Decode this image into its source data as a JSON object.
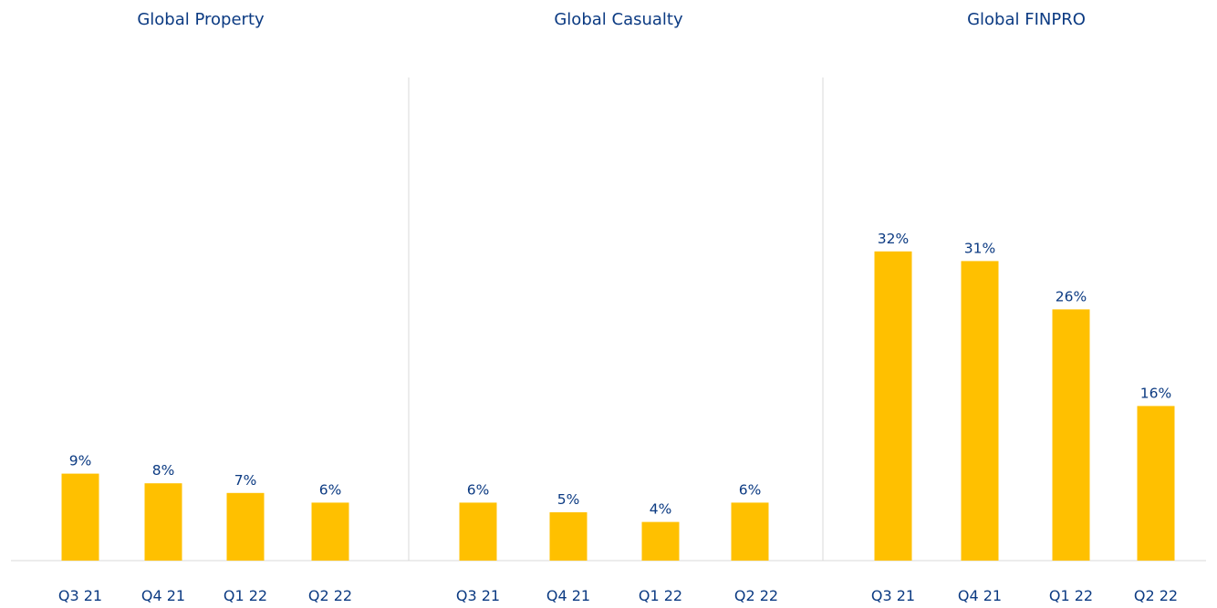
{
  "chart_data": [
    {
      "type": "bar",
      "title": "Global Property",
      "categories": [
        "Q3 21",
        "Q4 21",
        "Q1 22",
        "Q2 22"
      ],
      "values": [
        9,
        8,
        7,
        6
      ],
      "value_labels": [
        "9%",
        "8%",
        "7%",
        "6%"
      ],
      "bar_color": "#FFC000"
    },
    {
      "type": "bar",
      "title": "Global Casualty",
      "categories": [
        "Q3 21",
        "Q4 21",
        "Q1 22",
        "Q2 22"
      ],
      "values": [
        6,
        5,
        4,
        6
      ],
      "value_labels": [
        "6%",
        "5%",
        "4%",
        "6%"
      ],
      "bar_color": "#FFC000"
    },
    {
      "type": "bar",
      "title": "Global FINPRO",
      "categories": [
        "Q3 21",
        "Q4 21",
        "Q1 22",
        "Q2 22"
      ],
      "values": [
        32,
        31,
        26,
        16
      ],
      "value_labels": [
        "32%",
        "31%",
        "26%",
        "16%"
      ],
      "bar_color": "#FFC000"
    }
  ],
  "colors": {
    "text": "#0b3a82",
    "bar": "#FFC000",
    "axis": "#d9d9d9"
  }
}
